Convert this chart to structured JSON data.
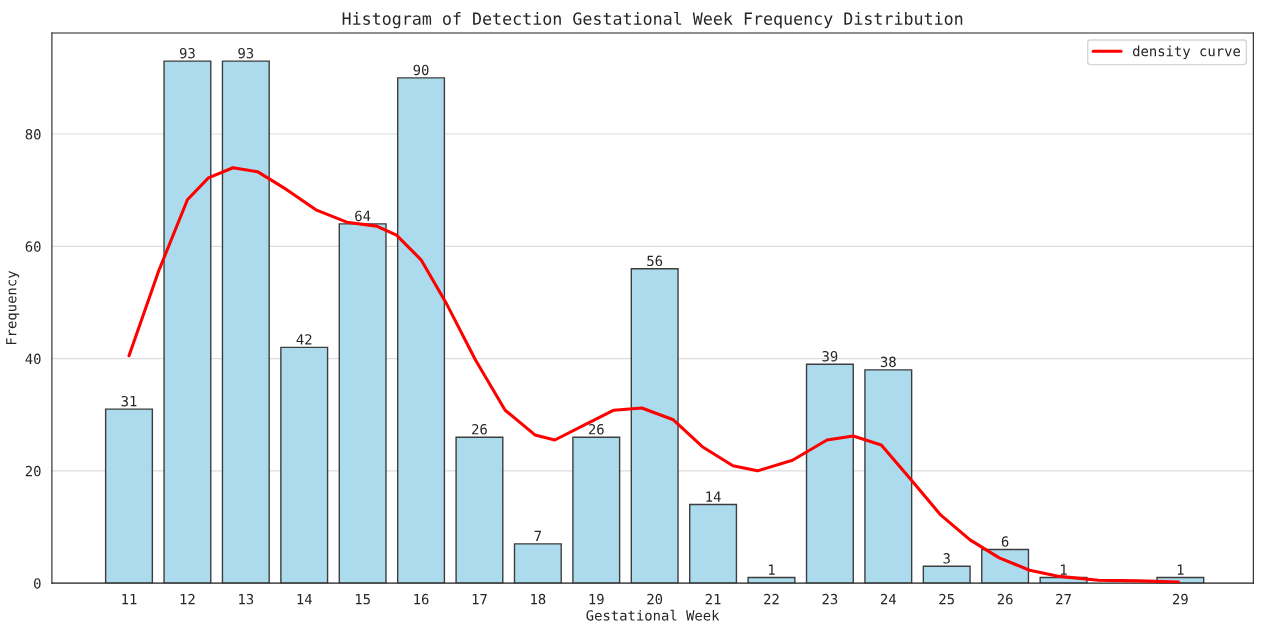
{
  "chart_data": {
    "type": "bar",
    "title": "Histogram of Detection Gestational Week Frequency Distribution",
    "xlabel": "Gestational Week",
    "ylabel": "Frequency",
    "series": [
      {
        "color": "#a8daed",
        "x": [
          11,
          12,
          13,
          14,
          15,
          16,
          17,
          18,
          19,
          20,
          21,
          22,
          23,
          24,
          25,
          26,
          27,
          29
        ],
        "values": [
          31,
          93,
          93,
          42,
          64,
          90,
          26,
          7,
          26,
          56,
          14,
          1,
          39,
          38,
          3,
          6,
          1,
          1
        ],
        "value_labels": [
          "31",
          "93",
          "93",
          "42",
          "64",
          "90",
          "26",
          "7",
          "26",
          "56",
          "14",
          "1",
          "39",
          "38",
          "3",
          "6",
          "1",
          "1"
        ]
      },
      {
        "type": "line",
        "name": "density curve",
        "color": "#ff0000",
        "x": [
          11,
          11.5,
          12,
          12.36,
          12.78,
          13.2,
          13.7,
          14.2,
          14.73,
          15.24,
          15.58,
          16.0,
          16.42,
          16.93,
          17.44,
          17.95,
          18.29,
          18.8,
          19.3,
          19.78,
          20.32,
          20.83,
          21.34,
          21.76,
          22.36,
          22.95,
          23.4,
          23.88,
          24.39,
          24.9,
          25.4,
          25.9,
          26.42,
          26.93,
          27.6,
          28.29,
          28.97
        ],
        "values": [
          40.5,
          55.4,
          68.3,
          72.2,
          74.0,
          73.3,
          70.1,
          66.5,
          64.3,
          63.6,
          62.0,
          57.6,
          50.1,
          39.8,
          30.8,
          26.4,
          25.5,
          28.2,
          30.8,
          31.2,
          29.1,
          24.2,
          20.9,
          20.0,
          21.9,
          25.5,
          26.2,
          24.6,
          18.4,
          12.1,
          7.7,
          4.5,
          2.3,
          1.2,
          0.5,
          0.4,
          0.2
        ]
      }
    ],
    "xlim": [
      9.68,
      30.25
    ],
    "xticks": [
      11,
      12,
      13,
      14,
      15,
      16,
      17,
      18,
      19,
      20,
      21,
      22,
      23,
      24,
      25,
      26,
      27,
      29
    ],
    "ylim": [
      0,
      98
    ],
    "yticks": [
      0,
      20,
      40,
      60,
      80
    ],
    "grid": "y",
    "legend": "top right"
  }
}
